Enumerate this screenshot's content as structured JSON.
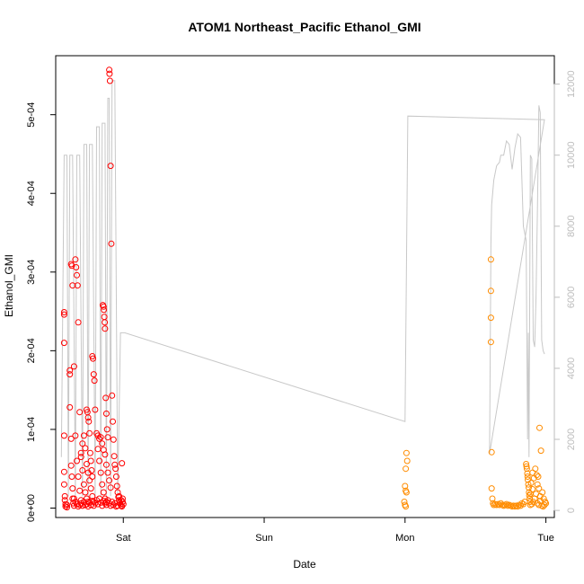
{
  "chart_data": {
    "type": "scatter",
    "title": "ATOM1 Northeast_Pacific Ethanol_GMI",
    "xlabel": "Date",
    "ylabel": "Ethanol_GMI",
    "x_tick_labels": [
      "Sat",
      "Sun",
      "Mon",
      "Tue"
    ],
    "x_ticks_days": [
      1,
      2,
      3,
      4
    ],
    "xlim_days": [
      0.52,
      4.06
    ],
    "ylim": [
      -1.2e-05,
      0.000575
    ],
    "y_ticks": [
      0,
      0.0001,
      0.0002,
      0.0003,
      0.0004,
      0.0005
    ],
    "y_tick_labels": [
      "0e+00",
      "1e-04",
      "2e-04",
      "3e-04",
      "4e-04",
      "5e-04"
    ],
    "ylim_right": [
      -200,
      12800
    ],
    "y_ticks_right": [
      0,
      2000,
      4000,
      6000,
      8000,
      10000,
      12000
    ],
    "y_tick_labels_right": [
      "0",
      "2000",
      "4000",
      "6000",
      "8000",
      "10000",
      "12000"
    ],
    "colors": {
      "points_series_1": "#ff0000",
      "points_series_2": "#ff8c00",
      "altitude_line": "#c8c8c8",
      "right_axis": "#bdbdbd"
    },
    "point_series": [
      {
        "color": "#ff0000",
        "points": [
          [
            0.58,
            0.000249
          ],
          [
            0.58,
            0.000246
          ],
          [
            0.58,
            0.00021
          ],
          [
            0.58,
            9.2e-05
          ],
          [
            0.58,
            4.6e-05
          ],
          [
            0.58,
            3e-05
          ],
          [
            0.585,
            1.5e-05
          ],
          [
            0.585,
            1e-05
          ],
          [
            0.59,
            5e-06
          ],
          [
            0.59,
            2e-06
          ],
          [
            0.6,
            1e-06
          ],
          [
            0.6,
            4e-06
          ],
          [
            0.62,
            0.000175
          ],
          [
            0.62,
            0.00017
          ],
          [
            0.62,
            0.000128
          ],
          [
            0.63,
            8.8e-05
          ],
          [
            0.63,
            5.4e-05
          ],
          [
            0.635,
            4e-05
          ],
          [
            0.64,
            2.5e-05
          ],
          [
            0.64,
            1.2e-05
          ],
          [
            0.645,
            6e-06
          ],
          [
            0.65,
            3e-06
          ],
          [
            0.63,
            0.00031
          ],
          [
            0.635,
            0.000308
          ],
          [
            0.64,
            0.000283
          ],
          [
            0.65,
            0.00018
          ],
          [
            0.66,
            9.2e-05
          ],
          [
            0.67,
            6e-05
          ],
          [
            0.68,
            4e-05
          ],
          [
            0.69,
            2.2e-05
          ],
          [
            0.7,
            1e-05
          ],
          [
            0.66,
            0.000316
          ],
          [
            0.665,
            0.000306
          ],
          [
            0.67,
            0.000296
          ],
          [
            0.675,
            0.000283
          ],
          [
            0.68,
            0.000236
          ],
          [
            0.69,
            0.000122
          ],
          [
            0.7,
            7e-05
          ],
          [
            0.71,
            4.8e-05
          ],
          [
            0.72,
            3e-05
          ],
          [
            0.73,
            2e-05
          ],
          [
            0.74,
            1.2e-05
          ],
          [
            0.75,
            8e-06
          ],
          [
            0.7,
            6.5e-05
          ],
          [
            0.71,
            8.2e-05
          ],
          [
            0.72,
            9.2e-05
          ],
          [
            0.73,
            7.6e-05
          ],
          [
            0.74,
            5.6e-05
          ],
          [
            0.75,
            4.5e-05
          ],
          [
            0.76,
            3.5e-05
          ],
          [
            0.77,
            2.5e-05
          ],
          [
            0.78,
            1.5e-05
          ],
          [
            0.79,
            8e-06
          ],
          [
            0.74,
            0.000125
          ],
          [
            0.745,
            0.000122
          ],
          [
            0.75,
            0.000115
          ],
          [
            0.755,
            0.00011
          ],
          [
            0.76,
            9.5e-05
          ],
          [
            0.765,
            7e-05
          ],
          [
            0.77,
            6e-05
          ],
          [
            0.775,
            4.8e-05
          ],
          [
            0.78,
            4e-05
          ],
          [
            0.78,
            0.000193
          ],
          [
            0.785,
            0.00019
          ],
          [
            0.79,
            0.00017
          ],
          [
            0.795,
            0.000162
          ],
          [
            0.8,
            0.000125
          ],
          [
            0.81,
            9.5e-05
          ],
          [
            0.82,
            7.5e-05
          ],
          [
            0.83,
            6e-05
          ],
          [
            0.84,
            4.5e-05
          ],
          [
            0.85,
            3e-05
          ],
          [
            0.86,
            2e-05
          ],
          [
            0.87,
            1.2e-05
          ],
          [
            0.88,
            8e-06
          ],
          [
            0.82,
            9.2e-05
          ],
          [
            0.83,
            8.8e-05
          ],
          [
            0.84,
            9e-05
          ],
          [
            0.85,
            8.2e-05
          ],
          [
            0.86,
            7.4e-05
          ],
          [
            0.87,
            6.8e-05
          ],
          [
            0.88,
            5.5e-05
          ],
          [
            0.89,
            4.5e-05
          ],
          [
            0.9,
            3.5e-05
          ],
          [
            0.91,
            2.6e-05
          ],
          [
            0.855,
            0.000258
          ],
          [
            0.86,
            0.000256
          ],
          [
            0.862,
            0.000252
          ],
          [
            0.865,
            0.000243
          ],
          [
            0.868,
            0.000236
          ],
          [
            0.87,
            0.000228
          ],
          [
            0.875,
            0.00014
          ],
          [
            0.88,
            0.00012
          ],
          [
            0.885,
            0.0001
          ],
          [
            0.89,
            9e-05
          ],
          [
            0.9,
            0.000557
          ],
          [
            0.902,
            0.000552
          ],
          [
            0.905,
            0.000543
          ],
          [
            0.91,
            0.000435
          ],
          [
            0.915,
            0.000336
          ],
          [
            0.92,
            0.000143
          ],
          [
            0.925,
            0.00011
          ],
          [
            0.93,
            8.7e-05
          ],
          [
            0.935,
            6.6e-05
          ],
          [
            0.94,
            5.5e-05
          ],
          [
            0.945,
            5e-05
          ],
          [
            0.95,
            4e-05
          ],
          [
            0.955,
            2.8e-05
          ],
          [
            0.96,
            2e-05
          ],
          [
            0.965,
            1.4e-05
          ],
          [
            0.97,
            1e-05
          ],
          [
            0.975,
            7e-06
          ],
          [
            0.98,
            5e-06
          ],
          [
            0.985,
            3e-06
          ],
          [
            0.99,
            2e-06
          ],
          [
            0.995,
            1.2e-05
          ],
          [
            0.995,
            8e-06
          ],
          [
            1.0,
            5e-06
          ],
          [
            0.99,
            5.7e-05
          ],
          [
            0.985,
            1e-05
          ],
          [
            0.97,
            1.5e-05
          ],
          [
            0.96,
            3e-06
          ],
          [
            0.95,
            2e-06
          ],
          [
            0.94,
            6e-06
          ],
          [
            0.93,
            4e-06
          ],
          [
            0.92,
            8e-06
          ],
          [
            0.91,
            3e-06
          ],
          [
            0.9,
            6e-06
          ],
          [
            0.89,
            1e-05
          ],
          [
            0.88,
            4e-06
          ],
          [
            0.87,
            6e-06
          ],
          [
            0.86,
            9e-06
          ],
          [
            0.85,
            3e-06
          ],
          [
            0.84,
            7e-06
          ],
          [
            0.83,
            1.2e-05
          ],
          [
            0.82,
            5e-06
          ],
          [
            0.81,
            1e-05
          ],
          [
            0.8,
            6e-06
          ],
          [
            0.79,
            3e-06
          ],
          [
            0.78,
            9e-06
          ],
          [
            0.77,
            4e-06
          ],
          [
            0.76,
            7e-06
          ],
          [
            0.75,
            2e-06
          ],
          [
            0.74,
            5e-06
          ],
          [
            0.73,
            4e-06
          ],
          [
            0.72,
            8e-06
          ],
          [
            0.71,
            3e-06
          ],
          [
            0.7,
            6e-06
          ],
          [
            0.69,
            4e-06
          ],
          [
            0.68,
            2e-06
          ],
          [
            0.67,
            5e-06
          ],
          [
            0.66,
            8e-06
          ],
          [
            0.65,
            1.2e-05
          ]
        ]
      },
      {
        "color": "#ff8c00",
        "points": [
          [
            3.01,
            7e-05
          ],
          [
            3.015,
            6e-05
          ],
          [
            3.005,
            5e-05
          ],
          [
            3.0,
            2.8e-05
          ],
          [
            3.005,
            2.2e-05
          ],
          [
            3.01,
            2e-05
          ],
          [
            2.995,
            8e-06
          ],
          [
            3.0,
            4e-06
          ],
          [
            3.005,
            2e-06
          ],
          [
            3.61,
            0.000316
          ],
          [
            3.61,
            0.000276
          ],
          [
            3.61,
            0.000242
          ],
          [
            3.61,
            0.000211
          ],
          [
            3.615,
            7.1e-05
          ],
          [
            3.615,
            2.5e-05
          ],
          [
            3.62,
            1.2e-05
          ],
          [
            3.625,
            6e-06
          ],
          [
            3.63,
            4e-06
          ],
          [
            3.64,
            5e-06
          ],
          [
            3.65,
            4e-06
          ],
          [
            3.66,
            5e-06
          ],
          [
            3.67,
            4e-06
          ],
          [
            3.68,
            6e-06
          ],
          [
            3.69,
            4e-06
          ],
          [
            3.7,
            3e-06
          ],
          [
            3.71,
            4e-06
          ],
          [
            3.72,
            5e-06
          ],
          [
            3.73,
            3e-06
          ],
          [
            3.74,
            4e-06
          ],
          [
            3.75,
            3e-06
          ],
          [
            3.76,
            2e-06
          ],
          [
            3.77,
            3e-06
          ],
          [
            3.78,
            2e-06
          ],
          [
            3.79,
            3e-06
          ],
          [
            3.8,
            2e-06
          ],
          [
            3.81,
            4e-06
          ],
          [
            3.82,
            3e-06
          ],
          [
            3.83,
            6e-06
          ],
          [
            3.84,
            5e-06
          ],
          [
            3.85,
            8e-06
          ],
          [
            3.86,
            5.6e-05
          ],
          [
            3.862,
            5.3e-05
          ],
          [
            3.865,
            5e-05
          ],
          [
            3.868,
            4.4e-05
          ],
          [
            3.87,
            4e-05
          ],
          [
            3.872,
            3.6e-05
          ],
          [
            3.875,
            3e-05
          ],
          [
            3.878,
            2.6e-05
          ],
          [
            3.88,
            2e-05
          ],
          [
            3.882,
            1.6e-05
          ],
          [
            3.885,
            1.2e-05
          ],
          [
            3.888,
            8e-06
          ],
          [
            3.89,
            4e-06
          ],
          [
            3.9,
            5e-06
          ],
          [
            3.91,
            8e-06
          ],
          [
            3.92,
            1.2e-05
          ],
          [
            3.93,
            1.8e-05
          ],
          [
            3.94,
            6e-06
          ],
          [
            3.95,
            4e-06
          ],
          [
            3.96,
            9e-06
          ],
          [
            3.97,
            3e-06
          ],
          [
            3.98,
            2e-06
          ],
          [
            3.99,
            4e-06
          ],
          [
            4.0,
            6e-06
          ],
          [
            3.935,
            4.2e-05
          ],
          [
            3.945,
            4e-05
          ],
          [
            3.955,
            0.000102
          ],
          [
            3.965,
            7.3e-05
          ],
          [
            3.975,
            2e-05
          ],
          [
            3.985,
            1.2e-05
          ],
          [
            3.995,
            8e-06
          ],
          [
            3.94,
            3e-05
          ],
          [
            3.95,
            2.5e-05
          ],
          [
            3.96,
            1.5e-05
          ],
          [
            3.925,
            5e-05
          ],
          [
            3.915,
            3.8e-05
          ],
          [
            3.905,
            2.4e-05
          ],
          [
            3.89,
            1.8e-05
          ],
          [
            3.895,
            3.2e-05
          ],
          [
            3.905,
            4.5e-05
          ]
        ]
      }
    ],
    "altitude_line": [
      [
        0.56,
        1500
      ],
      [
        0.58,
        10000
      ],
      [
        0.6,
        10000
      ],
      [
        0.61,
        400
      ],
      [
        0.62,
        10000
      ],
      [
        0.64,
        10000
      ],
      [
        0.66,
        400
      ],
      [
        0.67,
        10000
      ],
      [
        0.69,
        10000
      ],
      [
        0.71,
        400
      ],
      [
        0.72,
        10300
      ],
      [
        0.74,
        10300
      ],
      [
        0.75,
        400
      ],
      [
        0.76,
        10300
      ],
      [
        0.78,
        10300
      ],
      [
        0.8,
        400
      ],
      [
        0.81,
        10800
      ],
      [
        0.83,
        10800
      ],
      [
        0.84,
        400
      ],
      [
        0.85,
        10900
      ],
      [
        0.87,
        10900
      ],
      [
        0.88,
        400
      ],
      [
        0.89,
        11600
      ],
      [
        0.9,
        11600
      ],
      [
        0.91,
        400
      ],
      [
        0.92,
        12100
      ],
      [
        0.94,
        12100
      ],
      [
        0.96,
        400
      ],
      [
        0.98,
        5000
      ],
      [
        1.0,
        5000
      ],
      [
        1.01,
        5000
      ],
      [
        3.0,
        2500
      ],
      [
        3.01,
        6900
      ],
      [
        3.02,
        11100
      ],
      [
        3.99,
        11000
      ],
      [
        3.6,
        1600
      ],
      [
        3.61,
        7500
      ],
      [
        3.615,
        8600
      ],
      [
        3.63,
        9300
      ],
      [
        3.65,
        9700
      ],
      [
        3.67,
        9800
      ],
      [
        3.68,
        10000
      ],
      [
        3.7,
        10000
      ],
      [
        3.72,
        10400
      ],
      [
        3.74,
        10300
      ],
      [
        3.76,
        9600
      ],
      [
        3.78,
        10200
      ],
      [
        3.8,
        10600
      ],
      [
        3.82,
        10500
      ],
      [
        3.84,
        8000
      ],
      [
        3.86,
        7600
      ],
      [
        3.87,
        2000
      ],
      [
        3.875,
        5000
      ],
      [
        3.88,
        1500
      ],
      [
        3.89,
        10000
      ],
      [
        3.9,
        9900
      ],
      [
        3.91,
        4800
      ],
      [
        3.92,
        4600
      ],
      [
        3.93,
        6000
      ],
      [
        3.94,
        8500
      ],
      [
        3.95,
        11400
      ],
      [
        3.96,
        11200
      ],
      [
        3.97,
        4800
      ],
      [
        3.98,
        4500
      ],
      [
        3.99,
        4400
      ]
    ]
  }
}
